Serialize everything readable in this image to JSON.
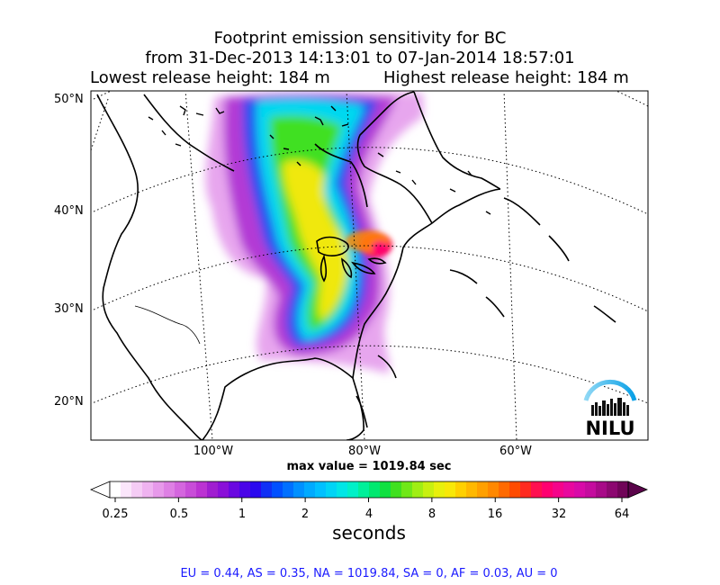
{
  "title": {
    "line1": "Footprint emission sensitivity for BC",
    "line2": "from 31-Dec-2013 14:13:01 to 07-Jan-2014 18:57:01",
    "lowest": "Lowest release height: 184 m",
    "highest": "Highest release height: 184 m"
  },
  "lat_labels": [
    "50°N",
    "40°N",
    "30°N",
    "20°N"
  ],
  "lon_labels": [
    "100°W",
    "80°W",
    "60°W"
  ],
  "max_value_text": "max value = 1019.84 sec",
  "colorbar": {
    "ticks": [
      "0.25",
      "0.5",
      "1",
      "2",
      "4",
      "8",
      "16",
      "32",
      "64"
    ],
    "unit": "seconds",
    "colors": [
      "#ffffff",
      "#fbe6fb",
      "#f5ccf5",
      "#efb3f0",
      "#e799ea",
      "#de80e4",
      "#d466de",
      "#c84dd8",
      "#bb33d2",
      "#a01ed0",
      "#8a10d8",
      "#6a08e0",
      "#4a04e8",
      "#2a08ef",
      "#1030f5",
      "#0050ff",
      "#0070ff",
      "#0090ff",
      "#00aaff",
      "#00c0ff",
      "#00d4f5",
      "#00e6e6",
      "#00f0c8",
      "#00f09a",
      "#00e870",
      "#10e040",
      "#40e020",
      "#70e818",
      "#a0ee14",
      "#c8f010",
      "#e8f00c",
      "#f8e808",
      "#ffd000",
      "#ffb800",
      "#ffa000",
      "#ff8800",
      "#ff6a00",
      "#ff4c00",
      "#ff2a20",
      "#ff1050",
      "#ff0070",
      "#f5048a",
      "#e8089e",
      "#d80aa8",
      "#c40c9e",
      "#a80a88",
      "#8c0870",
      "#700558"
    ]
  },
  "footer": "EU = 0.44,  AS = 0.35,  NA = 1019.84,  SA = 0,  AF = 0.03,  AU = 0",
  "logo_text": "NILU"
}
